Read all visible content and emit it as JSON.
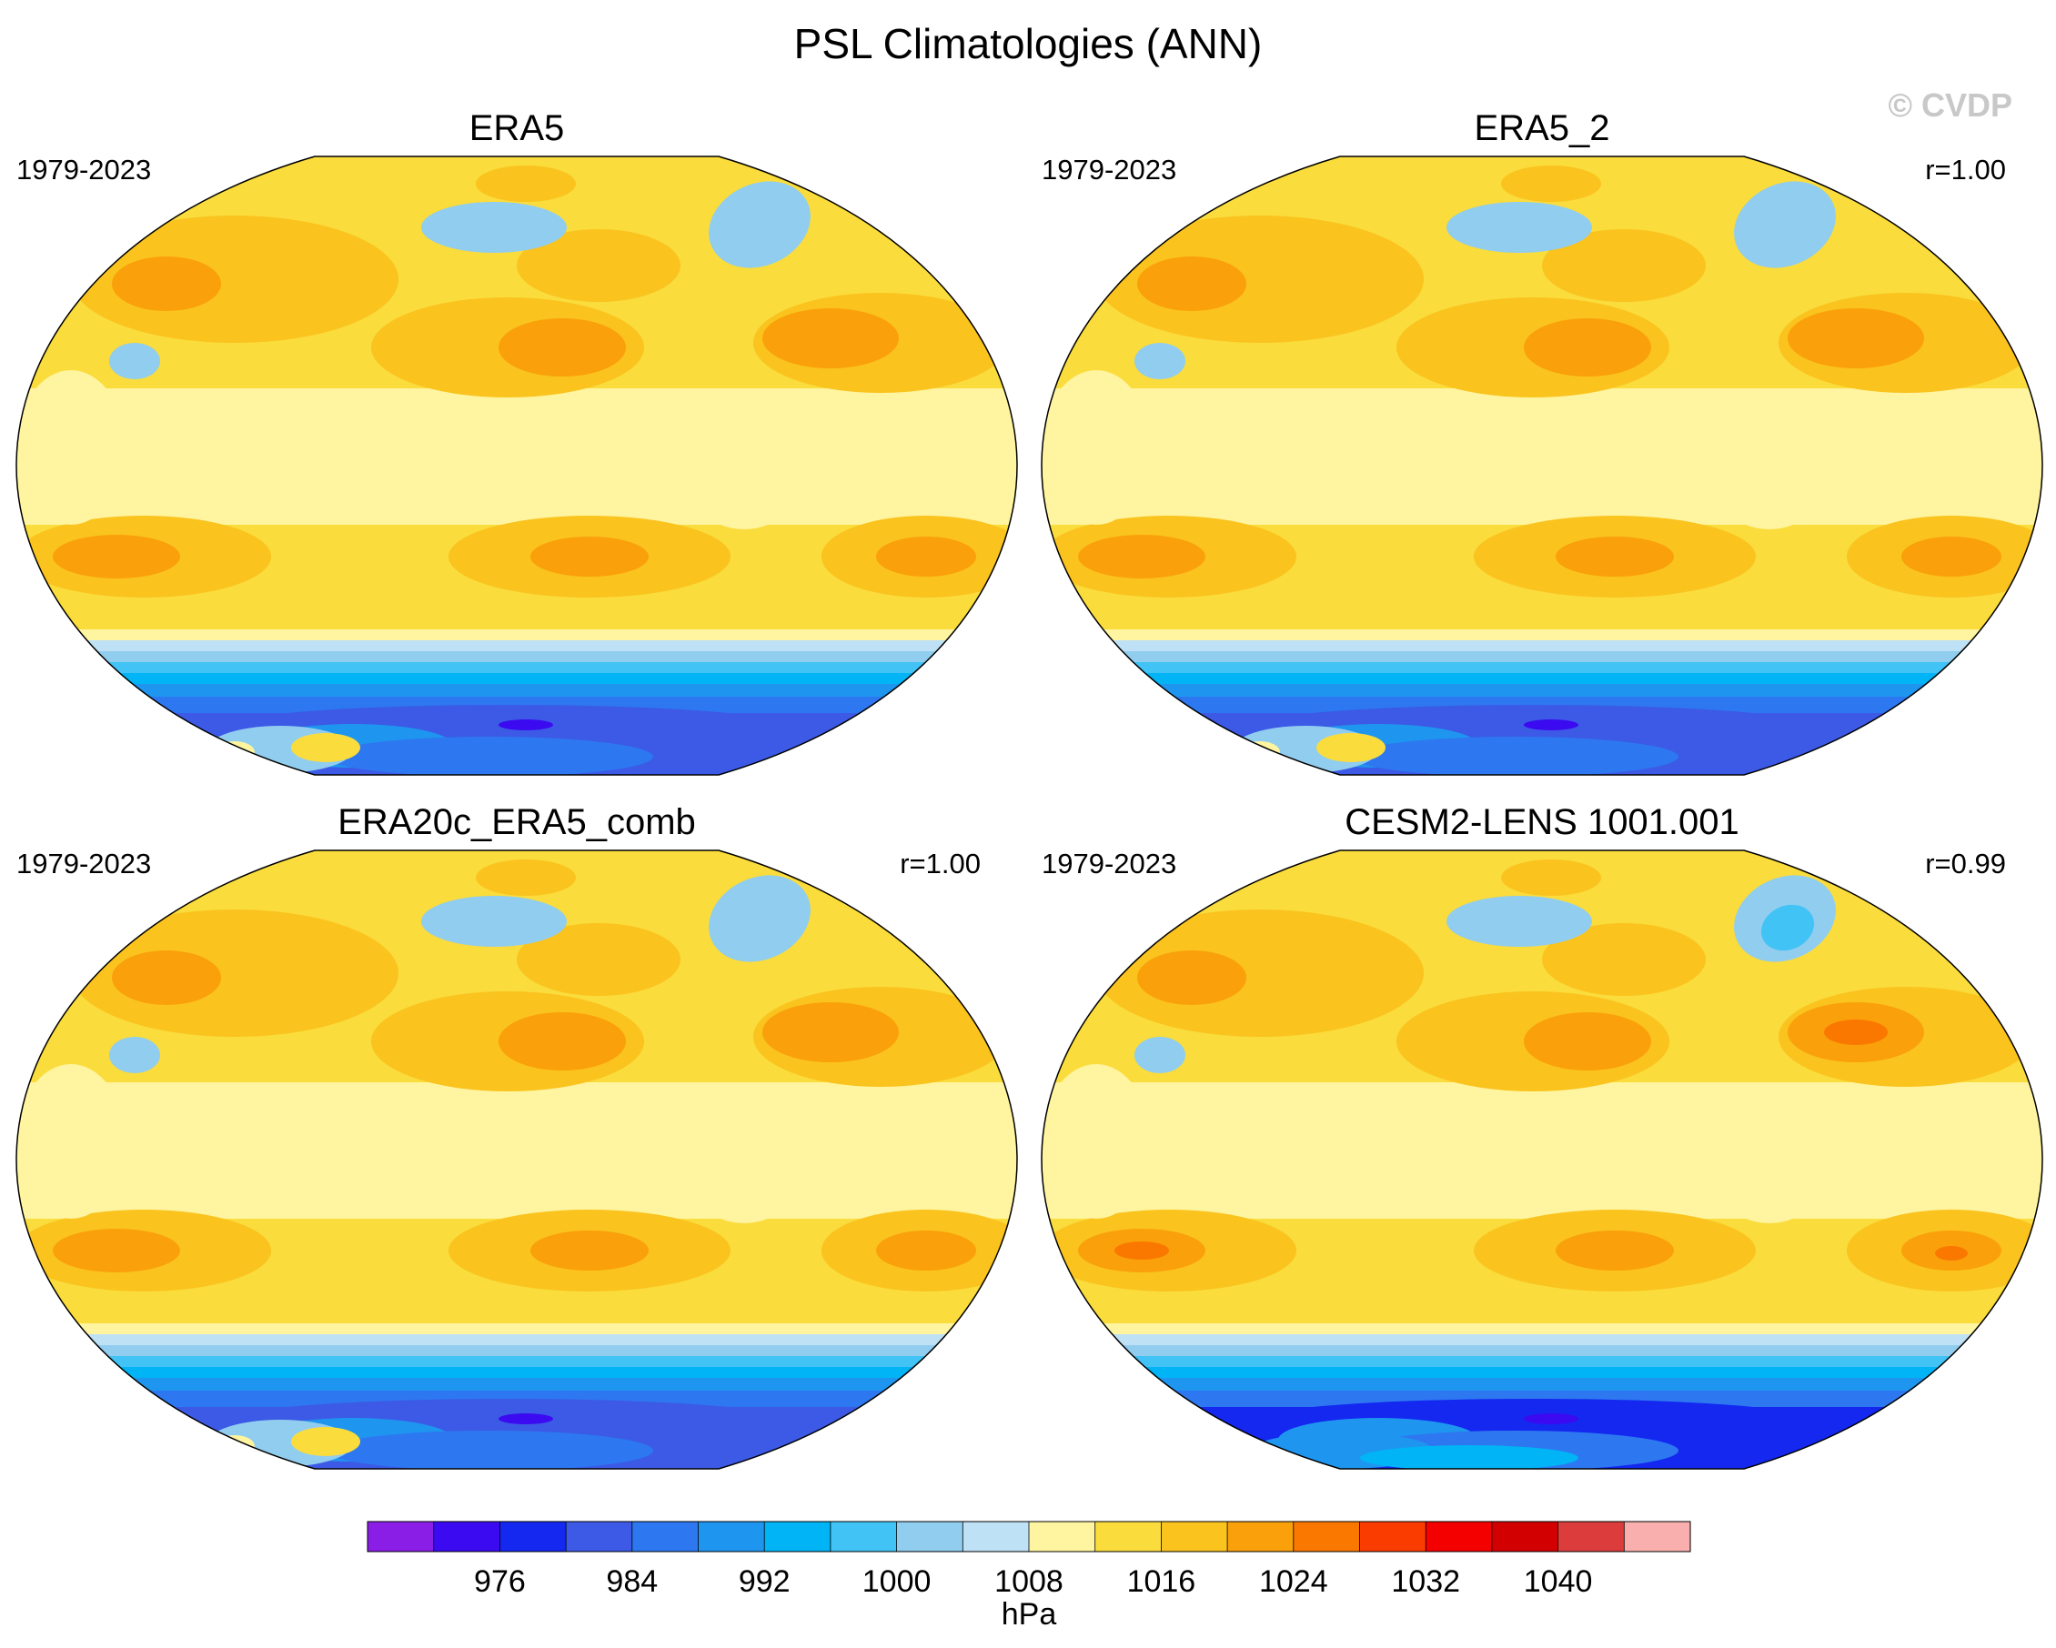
{
  "title": "PSL Climatologies (ANN)",
  "watermark": "© CVDP",
  "chart_data": {
    "type": "heatmap",
    "projection": "robinson",
    "variable": "PSL",
    "season": "ANN",
    "panels": [
      {
        "name": "ERA5",
        "period": "1979-2023",
        "correlation": null
      },
      {
        "name": "ERA5_2",
        "period": "1979-2023",
        "correlation": "r=1.00"
      },
      {
        "name": "ERA20c_ERA5_comb",
        "period": "1979-2023",
        "correlation": "r=1.00"
      },
      {
        "name": "CESM2-LENS 1001.001",
        "period": "1979-2023",
        "correlation": "r=0.99"
      }
    ],
    "colorbar": {
      "units": "hPa",
      "levels": [
        972,
        976,
        980,
        984,
        988,
        992,
        996,
        1000,
        1004,
        1008,
        1012,
        1016,
        1020,
        1024,
        1028,
        1032,
        1036,
        1040,
        1044
      ],
      "tick_labels": [
        "976",
        "984",
        "992",
        "1000",
        "1008",
        "1016",
        "1024",
        "1032",
        "1040"
      ],
      "tick_values": [
        976,
        984,
        992,
        1000,
        1008,
        1016,
        1024,
        1032,
        1040
      ],
      "colors": [
        "#8a1ee6",
        "#3c0af0",
        "#1428f0",
        "#3c5ae6",
        "#2d78f0",
        "#1e96f0",
        "#00b4f5",
        "#41c3f5",
        "#91cdee",
        "#bee1f5",
        "#fff5a0",
        "#fadc3c",
        "#fac31e",
        "#faa00a",
        "#fa7800",
        "#fa3c00",
        "#f50000",
        "#d20000",
        "#dc3c3c",
        "#faafaf"
      ]
    }
  }
}
